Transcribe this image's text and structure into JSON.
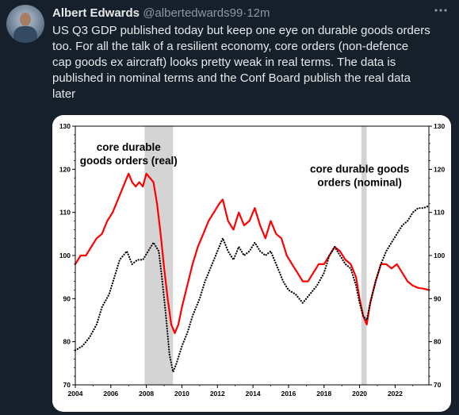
{
  "tweet": {
    "author_name": "Albert Edwards",
    "handle": "@albertedwards99",
    "separator": "·",
    "time": "12m",
    "text": "US Q3 GDP published today but keep one eye on durable goods orders\ntoo. For all the talk of a resilient economy, core orders (non-defence\ncap goods ex aircraft) looks pretty weak in real terms. The data is\npublished in nominal terms and the Conf Board publish the real data\nlater",
    "more_icon": "more-icon"
  },
  "chart_data": {
    "type": "line",
    "title": "",
    "xlabel": "",
    "ylabel": "",
    "xlim": [
      2004,
      2023.9
    ],
    "ylim": [
      70,
      130
    ],
    "x_ticks": [
      "2004",
      "2006",
      "2008",
      "2010",
      "2012",
      "2014",
      "2016",
      "2018",
      "2020",
      "2022"
    ],
    "y_ticks_left": [
      "130",
      "120",
      "110",
      "100",
      "90",
      "80",
      "70"
    ],
    "y_ticks_right": [
      "130",
      "120",
      "110",
      "100",
      "90",
      "80",
      "70"
    ],
    "grid": false,
    "shaded_periods": [
      [
        2007.9,
        2009.5
      ],
      [
        2020.1,
        2020.4
      ]
    ],
    "annotations": [
      {
        "lines": [
          "core durable",
          "goods orders (real)"
        ],
        "x": 2007.0,
        "y": 124.3
      },
      {
        "lines": [
          "core durable goods",
          "orders (nominal)"
        ],
        "x": 2020.0,
        "y": 119.2
      }
    ],
    "series": [
      {
        "color": "#ff0000",
        "style": "solid",
        "x": [
          2004.0,
          2004.3,
          2004.6,
          2004.9,
          2005.2,
          2005.5,
          2005.8,
          2006.1,
          2006.4,
          2006.7,
          2007.0,
          2007.2,
          2007.4,
          2007.6,
          2007.8,
          2008.0,
          2008.2,
          2008.4,
          2008.6,
          2008.8,
          2009.0,
          2009.2,
          2009.4,
          2009.6,
          2009.8,
          2010.0,
          2010.3,
          2010.6,
          2010.9,
          2011.2,
          2011.5,
          2011.8,
          2012.1,
          2012.3,
          2012.6,
          2012.9,
          2013.2,
          2013.5,
          2013.8,
          2014.1,
          2014.4,
          2014.7,
          2015.0,
          2015.3,
          2015.6,
          2015.9,
          2016.2,
          2016.5,
          2016.8,
          2017.1,
          2017.4,
          2017.7,
          2018.0,
          2018.3,
          2018.6,
          2018.9,
          2019.2,
          2019.5,
          2019.8,
          2020.0,
          2020.2,
          2020.4,
          2020.6,
          2020.9,
          2021.2,
          2021.5,
          2021.8,
          2022.1,
          2022.4,
          2022.7,
          2023.0,
          2023.3,
          2023.6,
          2023.9
        ],
        "values": [
          98,
          100,
          100,
          102,
          104,
          105,
          108,
          110,
          113,
          116,
          119,
          117,
          116,
          117,
          116,
          119,
          118,
          117,
          112,
          105,
          97,
          90,
          84,
          82,
          84,
          88,
          93,
          98,
          102,
          105,
          108,
          110,
          112,
          113,
          108,
          106,
          110,
          107,
          108,
          111,
          107,
          104,
          108,
          105,
          104,
          100,
          98,
          96,
          94,
          94,
          96,
          98,
          98,
          100,
          102,
          101,
          99,
          98,
          95,
          90,
          86,
          84,
          89,
          94,
          98,
          98,
          97,
          98,
          96,
          94,
          93,
          92.5,
          92.3,
          92
        ],
        "label_ref": "core durable goods orders (real)"
      },
      {
        "color": "#000000",
        "style": "dotted",
        "x": [
          2004.0,
          2004.4,
          2004.8,
          2005.2,
          2005.5,
          2005.9,
          2006.2,
          2006.5,
          2006.9,
          2007.2,
          2007.5,
          2007.8,
          2008.1,
          2008.4,
          2008.7,
          2008.9,
          2009.1,
          2009.3,
          2009.5,
          2009.7,
          2010.0,
          2010.3,
          2010.6,
          2011.0,
          2011.3,
          2011.7,
          2012.0,
          2012.3,
          2012.6,
          2012.9,
          2013.2,
          2013.5,
          2013.8,
          2014.1,
          2014.4,
          2014.7,
          2015.0,
          2015.3,
          2015.7,
          2016.0,
          2016.4,
          2016.8,
          2017.2,
          2017.6,
          2018.0,
          2018.3,
          2018.6,
          2018.9,
          2019.2,
          2019.5,
          2019.8,
          2020.0,
          2020.2,
          2020.4,
          2020.6,
          2020.9,
          2021.2,
          2021.5,
          2021.8,
          2022.1,
          2022.4,
          2022.7,
          2023.0,
          2023.3,
          2023.6,
          2023.9
        ],
        "values": [
          78,
          79,
          81,
          84,
          88,
          91,
          95,
          99,
          101,
          98,
          99,
          99,
          101,
          103,
          101,
          94,
          86,
          77,
          73,
          75,
          79,
          82,
          86,
          90,
          94,
          98,
          101,
          104,
          101,
          99,
          102,
          100,
          101,
          103,
          101,
          100,
          101,
          98,
          94,
          92,
          91,
          89,
          91,
          93,
          96,
          100,
          102,
          100,
          98,
          97,
          93,
          89,
          86,
          85,
          89,
          94,
          98,
          101,
          103,
          105,
          107,
          108,
          110,
          111,
          111,
          111.5
        ],
        "label_ref": "core durable goods orders (nominal)"
      }
    ]
  }
}
